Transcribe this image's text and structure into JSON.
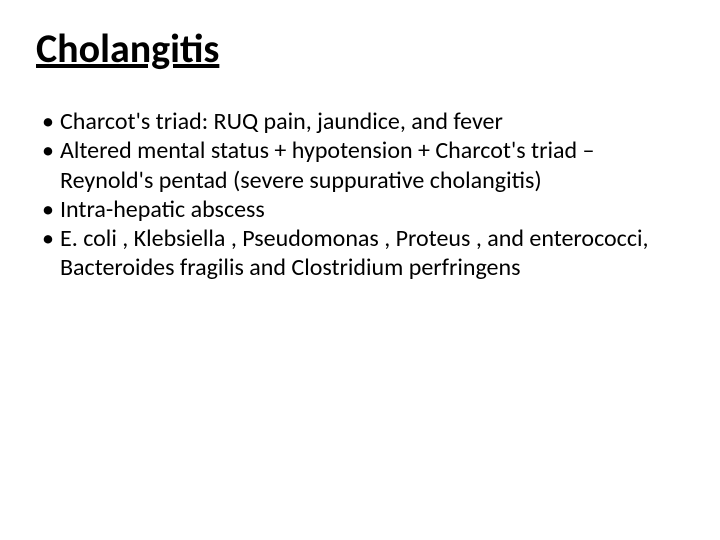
{
  "slide": {
    "title": "Cholangitis",
    "bullets": [
      "Charcot's triad: RUQ pain, jaundice, and fever",
      "Altered mental status + hypotension + Charcot's triad – Reynold's pentad (severe suppurative cholangitis)",
      "Intra-hepatic abscess",
      "E. coli , Klebsiella , Pseudomonas , Proteus , and enterococci, Bacteroides fragilis and Clostridium perfringens"
    ],
    "background_color": "#ffffff",
    "text_color": "#000000",
    "title_fontsize": 40,
    "body_fontsize": 24
  }
}
